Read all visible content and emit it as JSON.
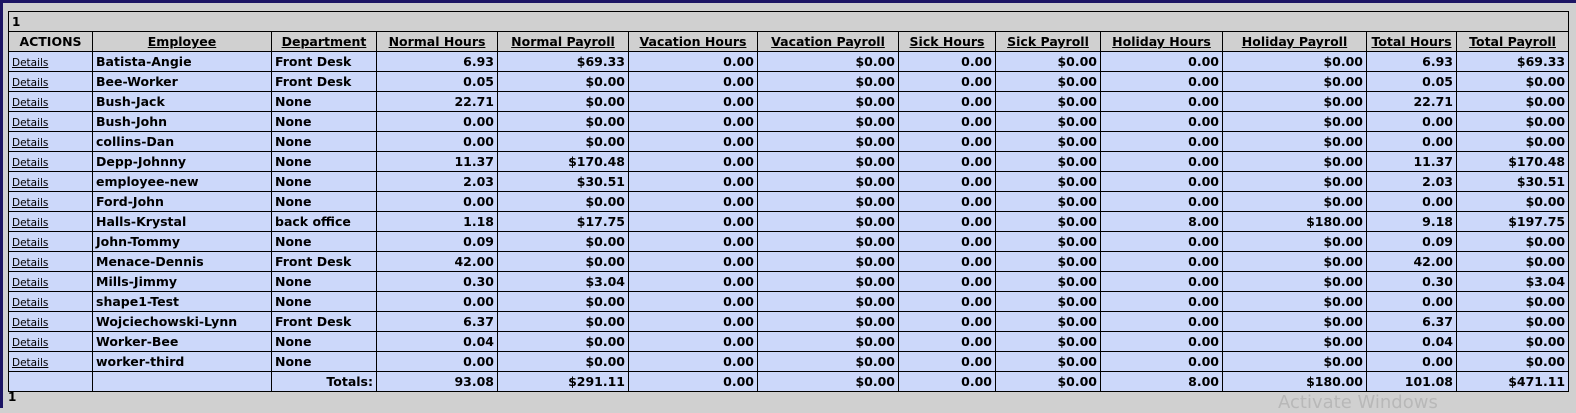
{
  "pager": {
    "top": "1",
    "bottom": "1"
  },
  "columns": [
    "ACTIONS",
    "Employee",
    "Department",
    "Normal Hours",
    "Normal Payroll",
    "Vacation Hours",
    "Vacation Payroll",
    "Sick Hours",
    "Sick Payroll",
    "Holiday Hours",
    "Holiday Payroll",
    "Total Hours",
    "Total Payroll"
  ],
  "details_label": "Details",
  "rows": [
    [
      "Batista-Angie",
      "Front Desk",
      "6.93",
      "$69.33",
      "0.00",
      "$0.00",
      "0.00",
      "$0.00",
      "0.00",
      "$0.00",
      "6.93",
      "$69.33"
    ],
    [
      "Bee-Worker",
      "Front Desk",
      "0.05",
      "$0.00",
      "0.00",
      "$0.00",
      "0.00",
      "$0.00",
      "0.00",
      "$0.00",
      "0.05",
      "$0.00"
    ],
    [
      "Bush-Jack",
      "None",
      "22.71",
      "$0.00",
      "0.00",
      "$0.00",
      "0.00",
      "$0.00",
      "0.00",
      "$0.00",
      "22.71",
      "$0.00"
    ],
    [
      "Bush-John",
      "None",
      "0.00",
      "$0.00",
      "0.00",
      "$0.00",
      "0.00",
      "$0.00",
      "0.00",
      "$0.00",
      "0.00",
      "$0.00"
    ],
    [
      "collins-Dan",
      "None",
      "0.00",
      "$0.00",
      "0.00",
      "$0.00",
      "0.00",
      "$0.00",
      "0.00",
      "$0.00",
      "0.00",
      "$0.00"
    ],
    [
      "Depp-Johnny",
      "None",
      "11.37",
      "$170.48",
      "0.00",
      "$0.00",
      "0.00",
      "$0.00",
      "0.00",
      "$0.00",
      "11.37",
      "$170.48"
    ],
    [
      "employee-new",
      "None",
      "2.03",
      "$30.51",
      "0.00",
      "$0.00",
      "0.00",
      "$0.00",
      "0.00",
      "$0.00",
      "2.03",
      "$30.51"
    ],
    [
      "Ford-John",
      "None",
      "0.00",
      "$0.00",
      "0.00",
      "$0.00",
      "0.00",
      "$0.00",
      "0.00",
      "$0.00",
      "0.00",
      "$0.00"
    ],
    [
      "Halls-Krystal",
      "back office",
      "1.18",
      "$17.75",
      "0.00",
      "$0.00",
      "0.00",
      "$0.00",
      "8.00",
      "$180.00",
      "9.18",
      "$197.75"
    ],
    [
      "John-Tommy",
      "None",
      "0.09",
      "$0.00",
      "0.00",
      "$0.00",
      "0.00",
      "$0.00",
      "0.00",
      "$0.00",
      "0.09",
      "$0.00"
    ],
    [
      "Menace-Dennis",
      "Front Desk",
      "42.00",
      "$0.00",
      "0.00",
      "$0.00",
      "0.00",
      "$0.00",
      "0.00",
      "$0.00",
      "42.00",
      "$0.00"
    ],
    [
      "Mills-Jimmy",
      "None",
      "0.30",
      "$3.04",
      "0.00",
      "$0.00",
      "0.00",
      "$0.00",
      "0.00",
      "$0.00",
      "0.30",
      "$3.04"
    ],
    [
      "shape1-Test",
      "None",
      "0.00",
      "$0.00",
      "0.00",
      "$0.00",
      "0.00",
      "$0.00",
      "0.00",
      "$0.00",
      "0.00",
      "$0.00"
    ],
    [
      "Wojciechowski-Lynn",
      "Front Desk",
      "6.37",
      "$0.00",
      "0.00",
      "$0.00",
      "0.00",
      "$0.00",
      "0.00",
      "$0.00",
      "6.37",
      "$0.00"
    ],
    [
      "Worker-Bee",
      "None",
      "0.04",
      "$0.00",
      "0.00",
      "$0.00",
      "0.00",
      "$0.00",
      "0.00",
      "$0.00",
      "0.04",
      "$0.00"
    ],
    [
      "worker-third",
      "None",
      "0.00",
      "$0.00",
      "0.00",
      "$0.00",
      "0.00",
      "$0.00",
      "0.00",
      "$0.00",
      "0.00",
      "$0.00"
    ]
  ],
  "totals": {
    "label": "Totals:",
    "values": [
      "93.08",
      "$291.11",
      "0.00",
      "$0.00",
      "0.00",
      "$0.00",
      "8.00",
      "$180.00",
      "101.08",
      "$471.11"
    ]
  },
  "watermark": "Activate Windows"
}
